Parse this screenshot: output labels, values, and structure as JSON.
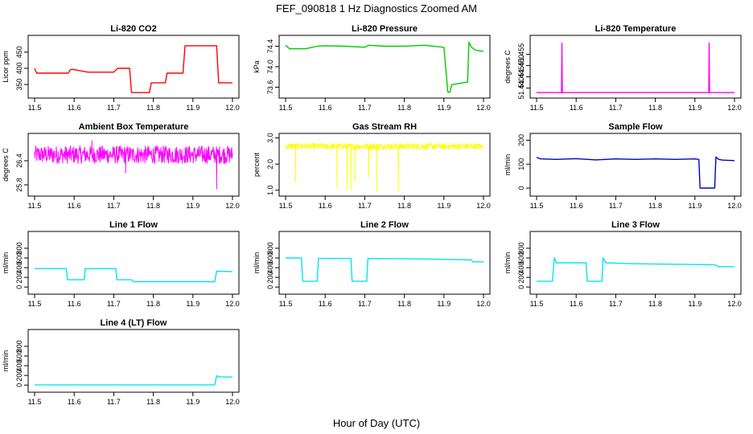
{
  "figure": {
    "title": "FEF_090818 1 Hz Diagnostics Zoomed AM",
    "xlabel": "Hour of Day (UTC)"
  },
  "chart_data": [
    {
      "type": "line",
      "title": "Li-820 CO2",
      "ylabel": "Licor ppm",
      "color": "#ff0000",
      "xlim": [
        11.5,
        12.0
      ],
      "ylim": [
        318,
        492
      ],
      "xticks": [
        "11.5",
        "11.6",
        "11.7",
        "11.8",
        "11.9",
        "12.0"
      ],
      "yticks": [
        350,
        400,
        450
      ],
      "x": [
        11.5,
        11.505,
        11.508,
        11.585,
        11.59,
        11.595,
        11.635,
        11.64,
        11.7,
        11.71,
        11.74,
        11.745,
        11.79,
        11.795,
        11.83,
        11.835,
        11.875,
        11.88,
        11.96,
        11.965,
        12.0
      ],
      "y": [
        400,
        385,
        385,
        385,
        395,
        397,
        388,
        388,
        388,
        400,
        400,
        325,
        325,
        355,
        355,
        385,
        385,
        470,
        470,
        355,
        355
      ]
    },
    {
      "type": "line",
      "title": "Li-820 Pressure",
      "ylabel": "kPa",
      "color": "#00cc00",
      "xlim": [
        11.5,
        12.0
      ],
      "ylim": [
        73.45,
        74.55
      ],
      "xticks": [
        "11.5",
        "11.6",
        "11.7",
        "11.8",
        "11.9",
        "12.0"
      ],
      "yticks": [
        73.6,
        74.0,
        74.4
      ],
      "yticklabels": [
        "73.6",
        "74.0",
        "74.4"
      ],
      "x": [
        11.5,
        11.51,
        11.55,
        11.58,
        11.6,
        11.65,
        11.7,
        11.71,
        11.75,
        11.8,
        11.85,
        11.9,
        11.91,
        11.915,
        11.92,
        11.96,
        11.963,
        11.97,
        11.98,
        12.0
      ],
      "y": [
        74.42,
        74.35,
        74.35,
        74.4,
        74.41,
        74.4,
        74.38,
        74.42,
        74.4,
        74.4,
        74.42,
        74.38,
        73.5,
        73.5,
        73.65,
        73.7,
        74.48,
        74.38,
        74.32,
        74.3
      ]
    },
    {
      "type": "line",
      "title": "Li-820 Temperature",
      "ylabel": "degrees C",
      "color": "#ff00ff",
      "xlim": [
        11.5,
        12.0
      ],
      "ylim": [
        51.437,
        51.462
      ],
      "xticks": [
        "11.5",
        "11.6",
        "11.7",
        "11.8",
        "11.9",
        "12.0"
      ],
      "yticks": [
        51.44,
        51.445,
        51.45,
        51.455
      ],
      "yticklabels": [
        "51.440",
        "51.445",
        "51.450",
        "51.455"
      ],
      "x": [
        11.5,
        11.563,
        11.564,
        11.565,
        11.935,
        11.936,
        11.937,
        12.0
      ],
      "y": [
        51.438,
        51.438,
        51.46,
        51.438,
        51.438,
        51.46,
        51.438,
        51.438
      ]
    },
    {
      "type": "line",
      "title": "Ambient Box Temperature",
      "ylabel": "degrees C",
      "color": "#ff00ff",
      "xlim": [
        11.5,
        12.0
      ],
      "ylim": [
        25.6,
        27.0
      ],
      "xticks": [
        "11.5",
        "11.6",
        "11.7",
        "11.8",
        "11.9",
        "12.0"
      ],
      "yticks": [
        25.8,
        26.4
      ],
      "yticklabels": [
        "25.8",
        "26.4"
      ],
      "noise": {
        "baseline": 26.55,
        "amplitude": 0.22,
        "spikes_down": [
          [
            11.73,
            26.1
          ],
          [
            11.96,
            25.7
          ]
        ],
        "spikes_up": [
          [
            11.645,
            26.9
          ]
        ]
      }
    },
    {
      "type": "line",
      "title": "Gas Stream RH",
      "ylabel": "percent",
      "color": "#ffff00",
      "xlim": [
        11.5,
        12.0
      ],
      "ylim": [
        0.9,
        3.05
      ],
      "xticks": [
        "11.5",
        "11.6",
        "11.7",
        "11.8",
        "11.9",
        "12.0"
      ],
      "yticks": [
        1.0,
        2.0,
        3.0
      ],
      "yticklabels": [
        "1.0",
        "2.0",
        "3.0"
      ],
      "noise": {
        "baseline": 2.68,
        "amplitude": 0.12,
        "spikes_down": [
          [
            11.525,
            1.3
          ],
          [
            11.63,
            1.1
          ],
          [
            11.655,
            1.0
          ],
          [
            11.665,
            1.0
          ],
          [
            11.675,
            1.3
          ],
          [
            11.71,
            1.5
          ],
          [
            11.73,
            0.95
          ],
          [
            11.785,
            0.95
          ]
        ],
        "spikes_up": []
      }
    },
    {
      "type": "line",
      "title": "Sample Flow",
      "ylabel": "ml/min",
      "color": "#0000cc",
      "xlim": [
        11.5,
        12.0
      ],
      "ylim": [
        -20,
        215
      ],
      "xticks": [
        "11.5",
        "11.6",
        "11.7",
        "11.8",
        "11.9",
        "12.0"
      ],
      "yticks": [
        0,
        100,
        200
      ],
      "x": [
        11.5,
        11.51,
        11.55,
        11.6,
        11.65,
        11.7,
        11.75,
        11.8,
        11.85,
        11.9,
        11.91,
        11.913,
        11.95,
        11.953,
        11.96,
        11.97,
        12.0
      ],
      "y": [
        128,
        122,
        120,
        123,
        118,
        122,
        120,
        122,
        120,
        122,
        120,
        0,
        0,
        130,
        120,
        117,
        115
      ]
    },
    {
      "type": "line",
      "title": "Line 1 Flow",
      "ylabel": "ml/min",
      "color": "#00e5ee",
      "xlim": [
        11.5,
        12.0
      ],
      "ylim": [
        -80,
        1080
      ],
      "xticks": [
        "11.5",
        "11.6",
        "11.7",
        "11.8",
        "11.9",
        "12.0"
      ],
      "yticks": [
        0,
        400,
        800
      ],
      "yticklabels": [
        "0",
        "200",
        "400",
        "600",
        "800"
      ],
      "yticks_all": [
        0,
        200,
        400,
        600,
        800
      ],
      "x": [
        11.5,
        11.58,
        11.583,
        11.625,
        11.628,
        11.705,
        11.708,
        11.745,
        11.75,
        11.955,
        11.96,
        12.0
      ],
      "y": [
        380,
        380,
        150,
        150,
        380,
        380,
        150,
        150,
        110,
        110,
        330,
        320
      ]
    },
    {
      "type": "line",
      "title": "Line 2 Flow",
      "ylabel": "ml/min",
      "color": "#00e5ee",
      "xlim": [
        11.5,
        12.0
      ],
      "ylim": [
        -80,
        1080
      ],
      "xticks": [
        "11.5",
        "11.6",
        "11.7",
        "11.8",
        "11.9",
        "12.0"
      ],
      "yticks_all": [
        0,
        200,
        400,
        600,
        800
      ],
      "yticklabels": [
        "0",
        "200",
        "400",
        "600",
        "800"
      ],
      "x": [
        11.5,
        11.54,
        11.543,
        11.58,
        11.583,
        11.665,
        11.668,
        11.705,
        11.708,
        11.85,
        11.97,
        11.973,
        12.0
      ],
      "y": [
        600,
        600,
        120,
        120,
        590,
        590,
        120,
        120,
        590,
        580,
        560,
        520,
        520
      ]
    },
    {
      "type": "line",
      "title": "Line 3 Flow",
      "ylabel": "ml/min",
      "color": "#00e5ee",
      "xlim": [
        11.5,
        12.0
      ],
      "ylim": [
        -80,
        1080
      ],
      "xticks": [
        "11.5",
        "11.6",
        "11.7",
        "11.8",
        "11.9",
        "12.0"
      ],
      "yticks_all": [
        0,
        200,
        400,
        600,
        800
      ],
      "yticklabels": [
        "0",
        "200",
        "400",
        "600",
        "800"
      ],
      "x": [
        11.5,
        11.54,
        11.545,
        11.55,
        11.625,
        11.628,
        11.665,
        11.668,
        11.675,
        11.75,
        11.85,
        11.95,
        11.96,
        12.0
      ],
      "y": [
        120,
        120,
        600,
        500,
        500,
        120,
        120,
        600,
        500,
        480,
        470,
        460,
        420,
        420
      ]
    },
    {
      "type": "line",
      "title": "Line 4 (LT) Flow",
      "ylabel": "ml/min",
      "color": "#00e5ee",
      "xlim": [
        11.5,
        12.0
      ],
      "ylim": [
        -80,
        1080
      ],
      "xticks": [
        "11.5",
        "11.6",
        "11.7",
        "11.8",
        "11.9",
        "12.0"
      ],
      "yticks_all": [
        0,
        200,
        400,
        600,
        800
      ],
      "yticklabels": [
        "0",
        "200",
        "400",
        "600",
        "800"
      ],
      "x": [
        11.5,
        11.955,
        11.96,
        11.97,
        12.0
      ],
      "y": [
        5,
        5,
        190,
        170,
        165
      ]
    }
  ]
}
